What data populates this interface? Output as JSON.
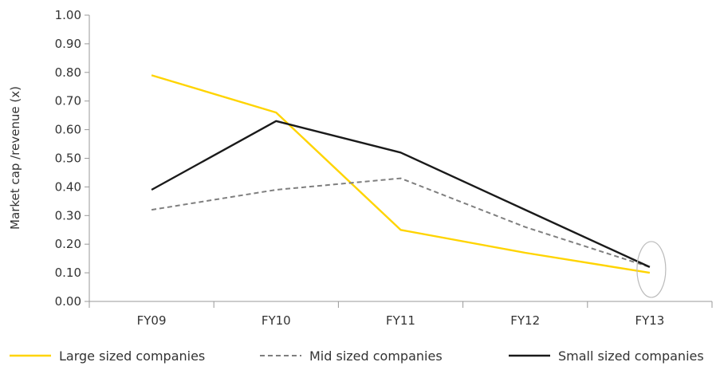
{
  "chart_data": {
    "type": "line",
    "title": "",
    "xlabel": "",
    "ylabel": "Market cap /revenue (x)",
    "categories": [
      "FY09",
      "FY10",
      "FY11",
      "FY12",
      "FY13"
    ],
    "ylim": [
      0,
      1.0
    ],
    "yticks": [
      "0.00",
      "0.10",
      "0.20",
      "0.30",
      "0.40",
      "0.50",
      "0.60",
      "0.70",
      "0.80",
      "0.90",
      "1.00"
    ],
    "grid": false,
    "legend": "bottom",
    "series": [
      {
        "name": "Large sized companies",
        "values": [
          0.79,
          0.66,
          0.25,
          0.17,
          0.1
        ],
        "color": "#FFD400",
        "style": "solid"
      },
      {
        "name": "Mid sized companies",
        "values": [
          0.32,
          0.39,
          0.43,
          0.26,
          0.12
        ],
        "color": "#7F7F7F",
        "style": "dashed"
      },
      {
        "name": "Small sized companies",
        "values": [
          0.39,
          0.63,
          0.52,
          0.32,
          0.12
        ],
        "color": "#1A1A1A",
        "style": "solid"
      }
    ],
    "annotations": [
      {
        "type": "ellipse",
        "category": "FY13",
        "center_value": 0.12,
        "color": "#BBBBBB"
      }
    ]
  }
}
